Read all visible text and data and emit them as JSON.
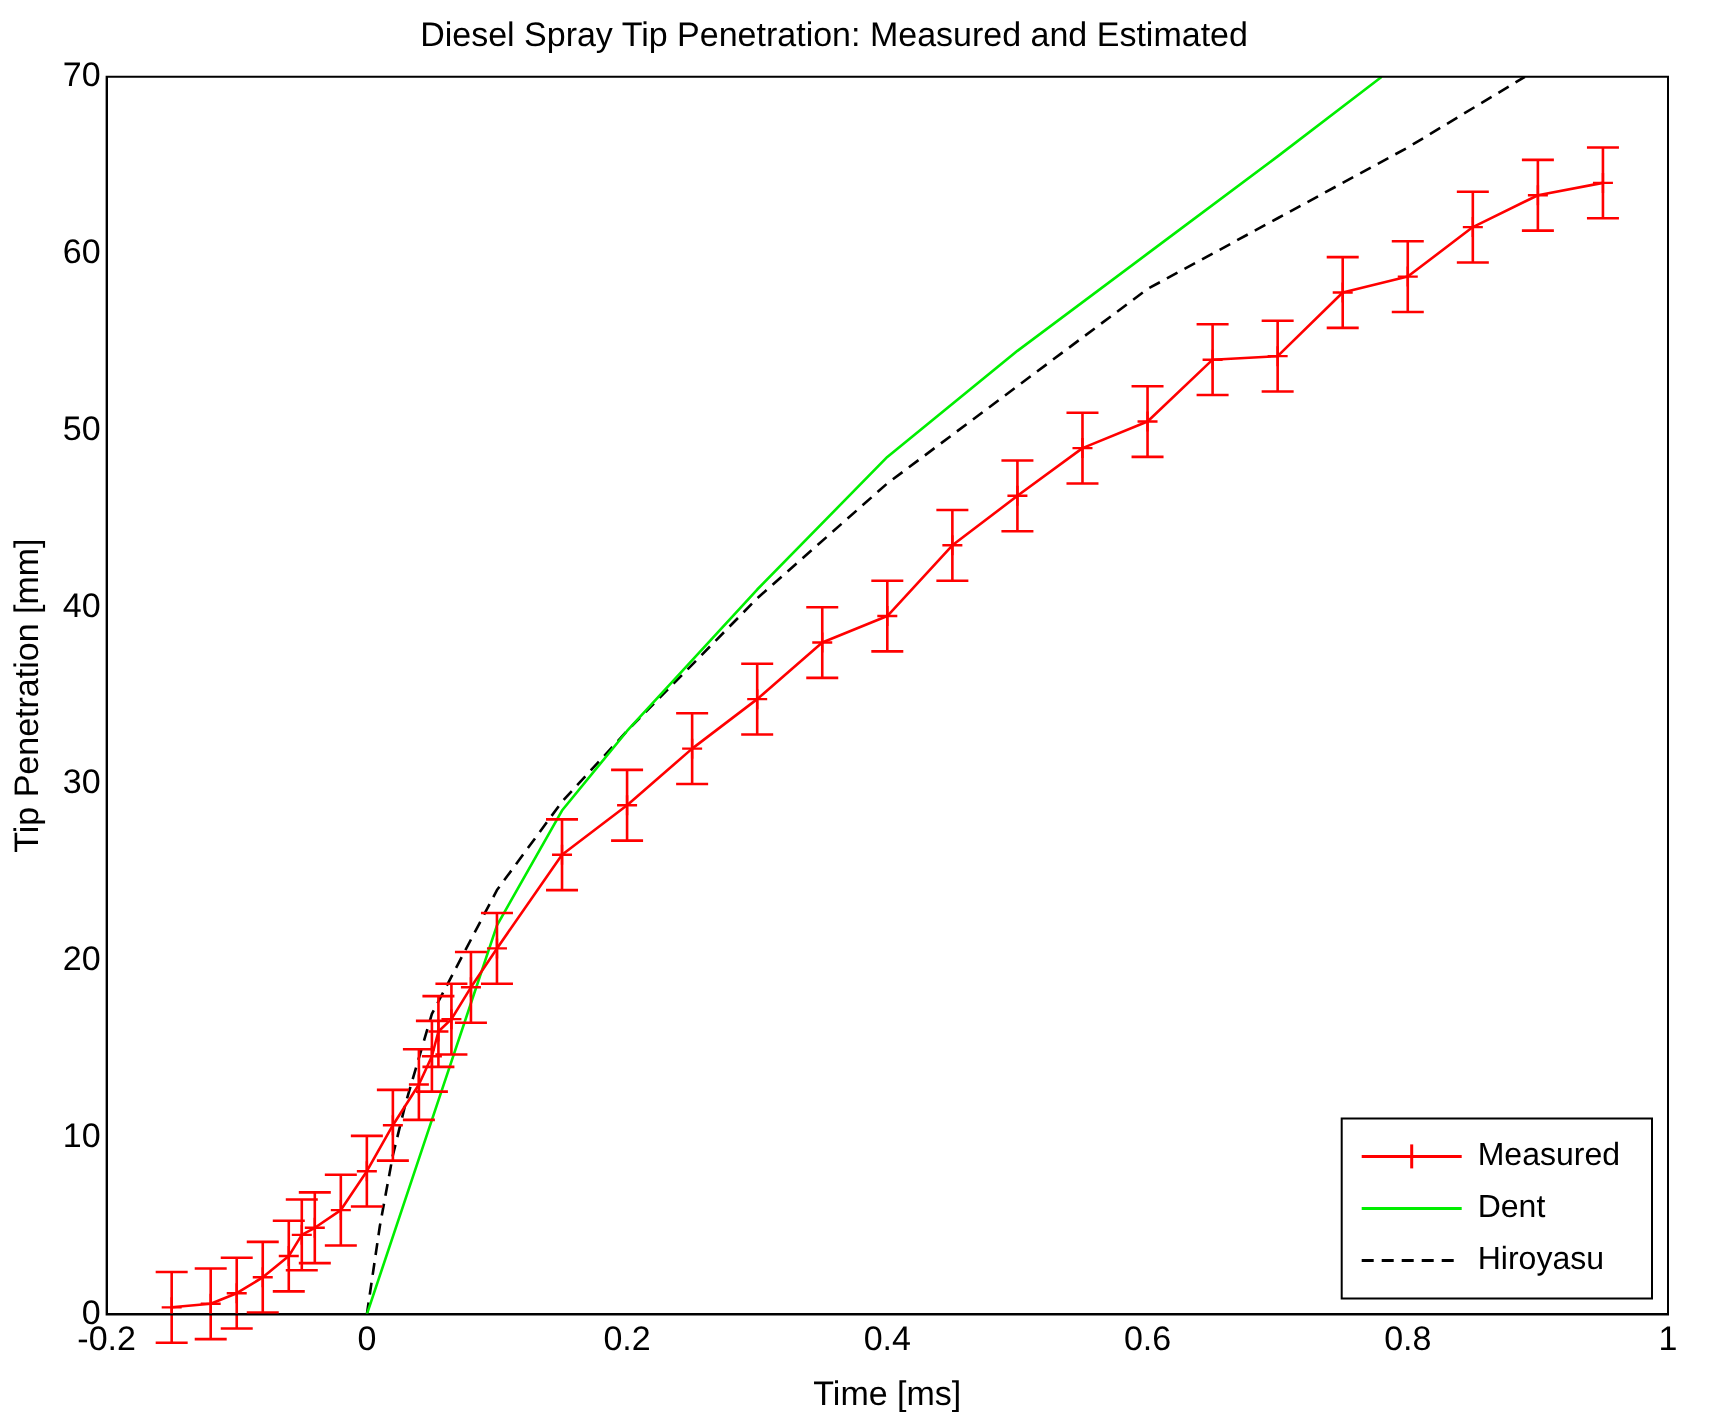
{
  "chart_data": {
    "type": "line",
    "title": "Diesel Spray Tip Penetration: Measured and Estimated",
    "xlabel": "Time [ms]",
    "ylabel": "Tip Penetration [mm]",
    "xlim": [
      -0.2,
      1
    ],
    "xticks": [
      -0.2,
      0,
      0.2,
      0.4,
      0.6,
      0.8,
      1
    ],
    "ylim": [
      0,
      70
    ],
    "yticks": [
      0,
      10,
      20,
      30,
      40,
      50,
      60,
      70
    ],
    "grid": false,
    "legend": "bottom right",
    "series": [
      {
        "name": "Measured",
        "color": "#ff0000",
        "marker": "cross",
        "line_style": "solid",
        "x": [
          -0.15,
          -0.12,
          -0.1,
          -0.08,
          -0.06,
          -0.05,
          -0.04,
          -0.02,
          0,
          0.02,
          0.04,
          0.05,
          0.055,
          0.065,
          0.08,
          0.1,
          0.15,
          0.2,
          0.25,
          0.3,
          0.35,
          0.4,
          0.45,
          0.5,
          0.55,
          0.6,
          0.65,
          0.7,
          0.75,
          0.8,
          0.85,
          0.9,
          0.95
        ],
        "values": [
          0.4,
          0.6,
          1.2,
          2.1,
          3.3,
          4.5,
          4.9,
          5.9,
          8.1,
          10.7,
          13,
          14.6,
          16,
          16.7,
          18.5,
          20.7,
          26,
          28.8,
          32,
          34.8,
          38,
          39.5,
          43.5,
          46.3,
          49,
          50.5,
          54,
          54.2,
          57.8,
          58.7,
          61.5,
          63.3,
          64
        ],
        "errors": [
          2,
          2,
          2,
          2,
          2,
          2,
          2,
          2,
          2,
          2,
          2,
          2,
          2,
          2,
          2,
          2,
          2,
          2,
          2,
          2,
          2,
          2,
          2,
          2,
          2,
          2,
          2,
          2,
          2,
          2,
          2,
          2,
          2
        ]
      },
      {
        "name": "Dent",
        "color": "#00ee00",
        "marker": "none",
        "line_style": "solid",
        "x": [
          0,
          0.05,
          0.1,
          0.15,
          0.2,
          0.3,
          0.4,
          0.5,
          0.6,
          0.7,
          0.78
        ],
        "values": [
          0,
          11,
          22,
          28.5,
          33,
          41,
          48.5,
          54.5,
          60,
          65.5,
          70
        ]
      },
      {
        "name": "Hiroyasu",
        "color": "#000000",
        "marker": "none",
        "line_style": "dashed",
        "x": [
          0,
          0.01,
          0.02,
          0.03,
          0.05,
          0.1,
          0.15,
          0.2,
          0.3,
          0.4,
          0.5,
          0.6,
          0.7,
          0.8,
          0.89
        ],
        "values": [
          0,
          5,
          9,
          12,
          17,
          24,
          29,
          33,
          40.5,
          47,
          52.5,
          58,
          62,
          66,
          70
        ]
      }
    ]
  }
}
